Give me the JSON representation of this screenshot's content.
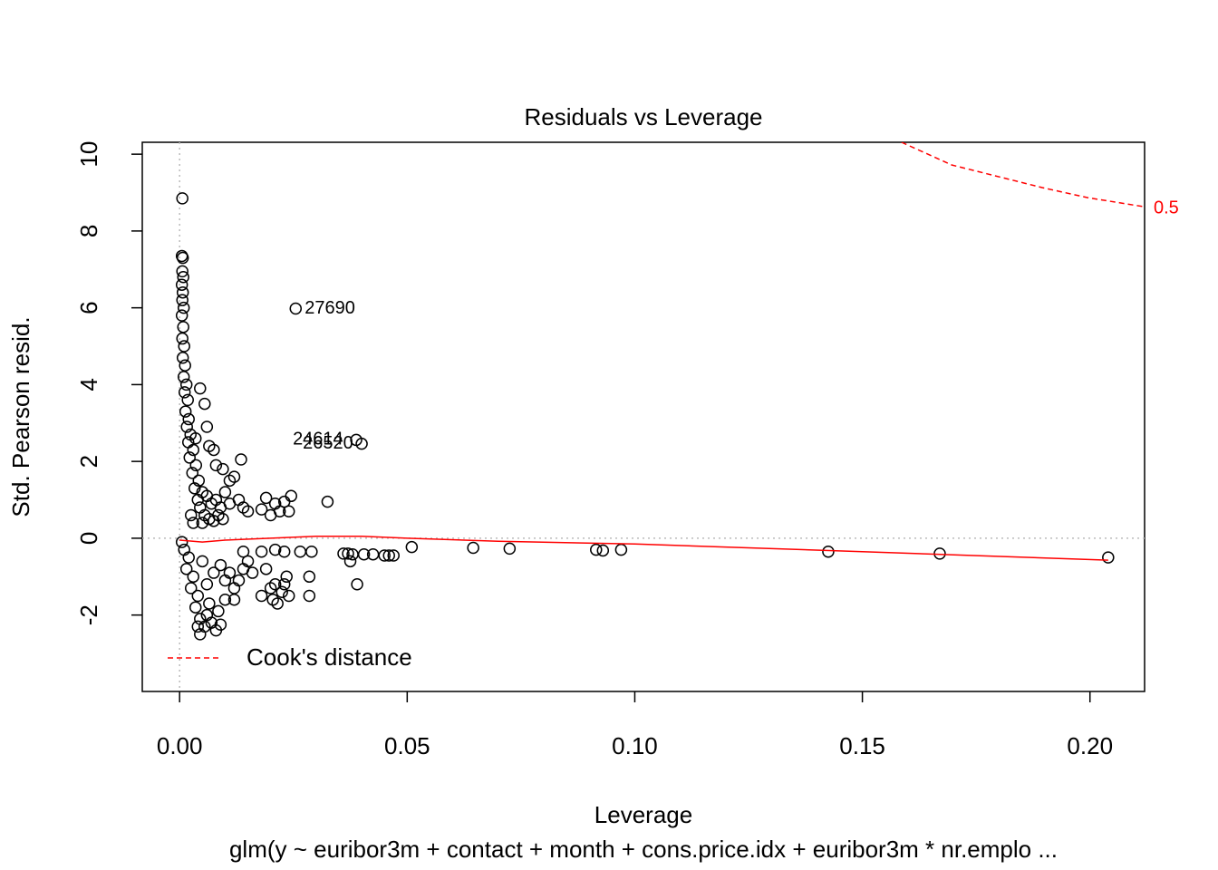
{
  "chart_data": {
    "type": "scatter",
    "title": "Residuals vs Leverage",
    "xlabel": "Leverage",
    "ylabel": "Std. Pearson resid.",
    "subtitle": "glm(y ~ euribor3m + contact + month + cons.price.idx + euribor3m * nr.emplo ...",
    "xlim": [
      -0.0082,
      0.212
    ],
    "ylim": [
      -3.99,
      10.31
    ],
    "xticks": [
      {
        "value": 0,
        "label": "0.00"
      },
      0.05,
      {
        "value": 0.1,
        "label": "0.10"
      },
      0.15,
      {
        "value": 0.2,
        "label": "0.20"
      }
    ],
    "yticks": [
      -2,
      0,
      2,
      4,
      6,
      8,
      10
    ],
    "reference_lines": {
      "x": 0,
      "y": 0
    },
    "point_color": "#000000",
    "x": [
      0.0006,
      0.0005,
      0.0007,
      0.0006,
      0.0008,
      0.0005,
      0.0007,
      0.0006,
      0.0009,
      0.0005,
      0.0008,
      0.0006,
      0.001,
      0.0007,
      0.0012,
      0.0009,
      0.0015,
      0.0011,
      0.0018,
      0.0013,
      0.002,
      0.0016,
      0.0024,
      0.0019,
      0.003,
      0.0022,
      0.0036,
      0.0028,
      0.0042,
      0.0033,
      0.005,
      0.004,
      0.006,
      0.0045,
      0.007,
      0.0055,
      0.008,
      0.0065,
      0.009,
      0.0075,
      0.01,
      0.0085,
      0.011,
      0.0095,
      0.012,
      0.013,
      0.014,
      0.0135,
      0.0045,
      0.0055,
      0.006,
      0.0065,
      0.0075,
      0.008,
      0.0095,
      0.011,
      0.015,
      0.018,
      0.019,
      0.02,
      0.021,
      0.022,
      0.023,
      0.0245,
      0.024,
      0.0325,
      0.003,
      0.005,
      0.0025,
      0.0035,
      0.0005,
      0.001,
      0.002,
      0.0015,
      0.003,
      0.0025,
      0.004,
      0.0035,
      0.0045,
      0.004,
      0.0045,
      0.0055,
      0.006,
      0.007,
      0.0065,
      0.008,
      0.009,
      0.0085,
      0.01,
      0.005,
      0.006,
      0.0075,
      0.009,
      0.01,
      0.011,
      0.012,
      0.013,
      0.014,
      0.012,
      0.015,
      0.014,
      0.016,
      0.018,
      0.019,
      0.02,
      0.021,
      0.0205,
      0.0215,
      0.0225,
      0.0235,
      0.024,
      0.023,
      0.0285,
      0.0285,
      0.039,
      0.0375,
      0.018,
      0.021,
      0.023,
      0.0265,
      0.029,
      0.036,
      0.037,
      0.038,
      0.0405,
      0.0425,
      0.045,
      0.046,
      0.047,
      0.051,
      0.0645,
      0.0725,
      0.0915,
      0.093,
      0.097,
      0.1425,
      0.167,
      0.204
    ],
    "y": [
      8.85,
      7.35,
      7.3,
      6.95,
      6.8,
      6.6,
      6.4,
      6.2,
      6.0,
      5.8,
      5.5,
      5.2,
      5.0,
      4.7,
      4.5,
      4.2,
      4.0,
      3.8,
      3.6,
      3.3,
      3.1,
      2.9,
      2.7,
      2.5,
      2.3,
      2.1,
      1.9,
      1.7,
      1.5,
      1.3,
      1.2,
      1.0,
      1.1,
      0.8,
      0.9,
      0.6,
      1.0,
      0.5,
      0.8,
      0.45,
      1.2,
      0.6,
      0.9,
      0.5,
      1.6,
      1.0,
      0.8,
      2.05,
      3.9,
      3.5,
      2.9,
      2.4,
      2.3,
      1.9,
      1.8,
      1.5,
      0.7,
      0.75,
      1.05,
      0.6,
      0.9,
      0.7,
      0.95,
      1.1,
      0.7,
      0.95,
      0.4,
      0.4,
      0.6,
      2.6,
      -0.1,
      -0.3,
      -0.5,
      -0.8,
      -1.0,
      -1.3,
      -1.5,
      -1.8,
      -2.1,
      -2.3,
      -2.5,
      -2.3,
      -2.0,
      -2.2,
      -1.7,
      -2.4,
      -2.25,
      -1.9,
      -1.6,
      -0.6,
      -1.2,
      -0.9,
      -0.7,
      -1.1,
      -0.9,
      -1.3,
      -1.1,
      -0.8,
      -1.6,
      -0.6,
      -0.35,
      -0.9,
      -1.5,
      -0.8,
      -1.3,
      -1.2,
      -1.6,
      -1.7,
      -1.4,
      -1.0,
      -1.5,
      -1.2,
      -1.0,
      -1.5,
      -1.2,
      -0.6,
      -0.35,
      -0.3,
      -0.35,
      -0.35,
      -0.35,
      -0.4,
      -0.4,
      -0.42,
      -0.42,
      -0.42,
      -0.45,
      -0.45,
      -0.45,
      -0.23,
      -0.25,
      -0.27,
      -0.3,
      -0.32,
      -0.3,
      -0.35,
      -0.4,
      -0.5
    ],
    "point_labels": [
      {
        "x": 0.0255,
        "y": 5.98,
        "label": "27690"
      },
      {
        "x": 0.0388,
        "y": 2.56,
        "label": "24614"
      },
      {
        "x": 0.04,
        "y": 2.46,
        "label": "26520"
      }
    ],
    "smooth": {
      "color": "#ff0000",
      "x": [
        0,
        0.005,
        0.01,
        0.02,
        0.03,
        0.04,
        0.05,
        0.07,
        0.1,
        0.15,
        0.204
      ],
      "y": [
        -0.05,
        -0.1,
        -0.05,
        0.0,
        0.05,
        0.05,
        0.0,
        -0.08,
        -0.15,
        -0.35,
        -0.57
      ]
    },
    "cooks_distance": {
      "name": "Cook's distance",
      "label": "0.5",
      "color": "#ff0000",
      "x": [
        0.1586,
        0.1696,
        0.1895,
        0.1994,
        0.212
      ],
      "y": [
        10.31,
        9.72,
        9.13,
        8.87,
        8.63
      ]
    },
    "legend": "bottomleft"
  }
}
